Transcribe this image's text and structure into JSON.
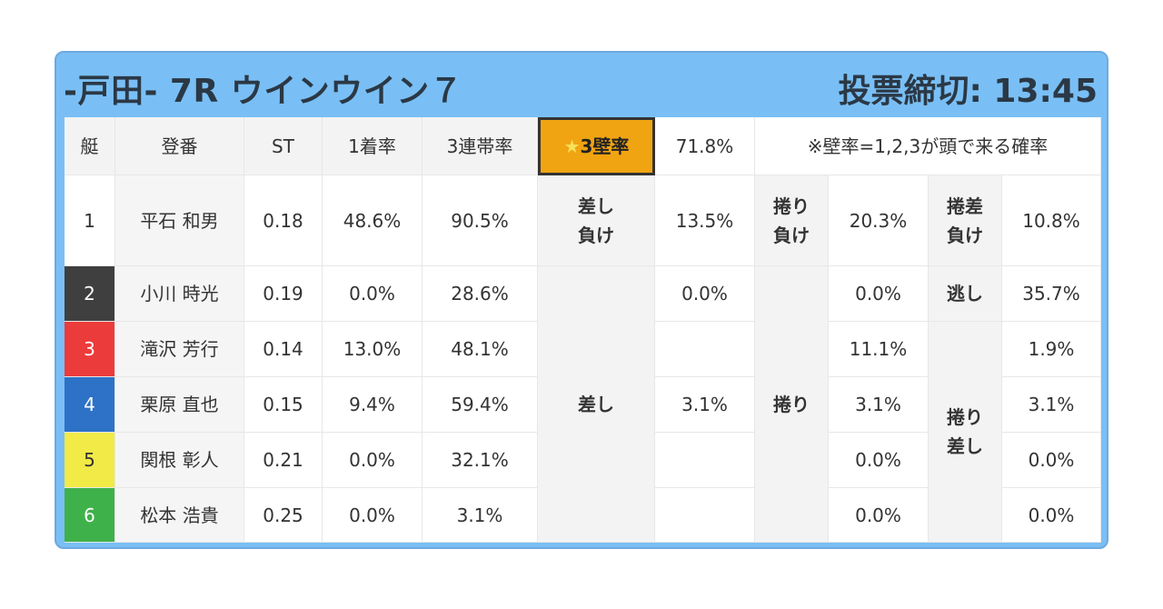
{
  "header": {
    "title": "-戸田- 7R ウインウイン７",
    "deadline": "投票締切: 13:45"
  },
  "columns": {
    "boat": "艇",
    "name": "登番",
    "st": "ST",
    "first_rate": "1着率",
    "top3_rate": "3連帯率",
    "star_mark": "★",
    "wall_label": "3壁率",
    "wall_value": "71.8%",
    "wall_note": "※壁率=1,2,3が頭で来る確率"
  },
  "racers": [
    {
      "boat": "1",
      "name": "平石 和男",
      "st": "0.18",
      "first": "48.6%",
      "top3": "90.5%"
    },
    {
      "boat": "2",
      "name": "小川 時光",
      "st": "0.19",
      "first": "0.0%",
      "top3": "28.6%"
    },
    {
      "boat": "3",
      "name": "滝沢 芳行",
      "st": "0.14",
      "first": "13.0%",
      "top3": "48.1%"
    },
    {
      "boat": "4",
      "name": "栗原 直也",
      "st": "0.15",
      "first": "9.4%",
      "top3": "59.4%"
    },
    {
      "boat": "5",
      "name": "関根 彰人",
      "st": "0.21",
      "first": "0.0%",
      "top3": "32.1%"
    },
    {
      "boat": "6",
      "name": "松本 浩貴",
      "st": "0.25",
      "first": "0.0%",
      "top3": "3.1%"
    }
  ],
  "kimarite": {
    "row1": [
      {
        "label_line1": "差し",
        "label_line2": "負け",
        "value": "13.5%"
      },
      {
        "label_line1": "捲り",
        "label_line2": "負け",
        "value": "20.3%"
      },
      {
        "label_line1": "捲差",
        "label_line2": "負け",
        "value": "10.8%"
      }
    ],
    "sashi": {
      "label": "差し",
      "values": [
        "0.0%",
        "",
        "3.1%",
        "",
        ""
      ]
    },
    "makuri": {
      "label": "捲り",
      "values": [
        "0.0%",
        "11.1%",
        "3.1%",
        "0.0%",
        "0.0%"
      ]
    },
    "nige": {
      "label": "逃し",
      "value": "35.7%"
    },
    "makurisashi": {
      "label_line1": "捲り",
      "label_line2": "差し",
      "values": [
        "1.9%",
        "3.1%",
        "0.0%",
        "0.0%"
      ]
    }
  }
}
